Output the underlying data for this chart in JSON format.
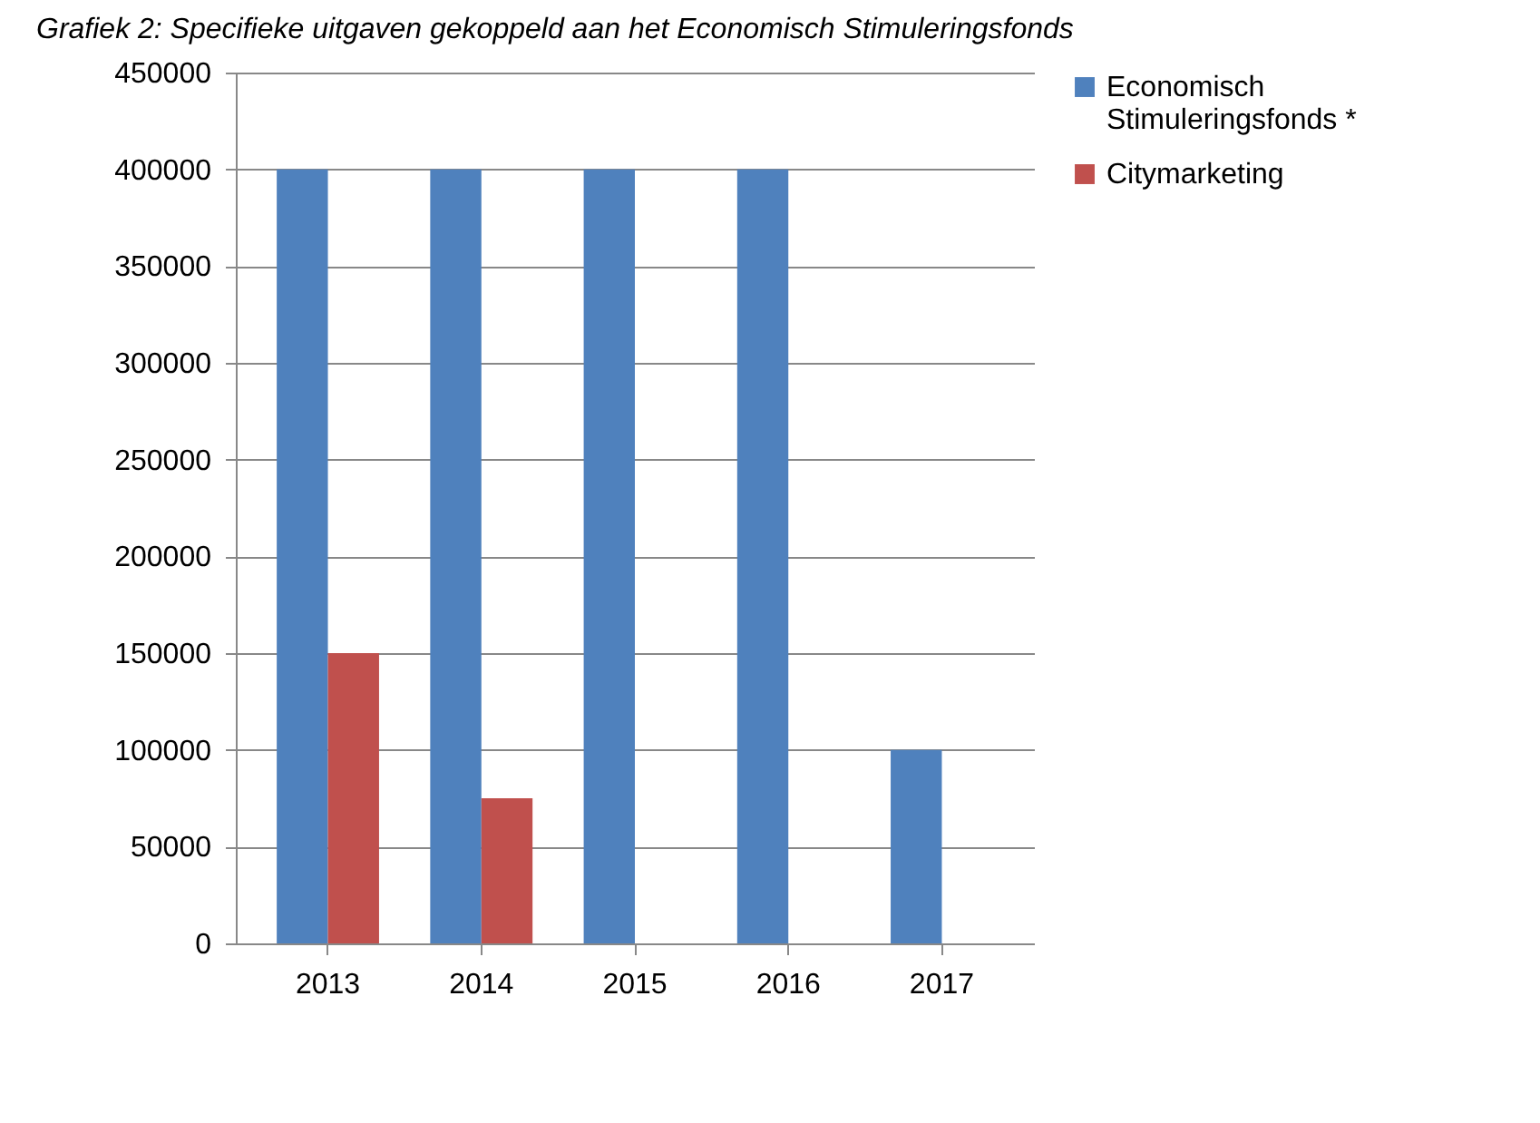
{
  "chart_data": {
    "type": "bar",
    "title": "Grafiek 2: Specifieke uitgaven gekoppeld aan het Economisch Stimuleringsfonds",
    "categories": [
      "2013",
      "2014",
      "2015",
      "2016",
      "2017"
    ],
    "series": [
      {
        "name": "Economisch Stimuleringsfonds *",
        "color": "#4f81bd",
        "values": [
          400000,
          400000,
          400000,
          400000,
          100000
        ]
      },
      {
        "name": "Citymarketing",
        "color": "#c0504d",
        "values": [
          150000,
          75000,
          null,
          null,
          null
        ]
      }
    ],
    "ylim": [
      0,
      450000
    ],
    "yticks": [
      0,
      50000,
      100000,
      150000,
      200000,
      250000,
      300000,
      350000,
      400000,
      450000
    ],
    "grid": "y",
    "legend": "right"
  }
}
